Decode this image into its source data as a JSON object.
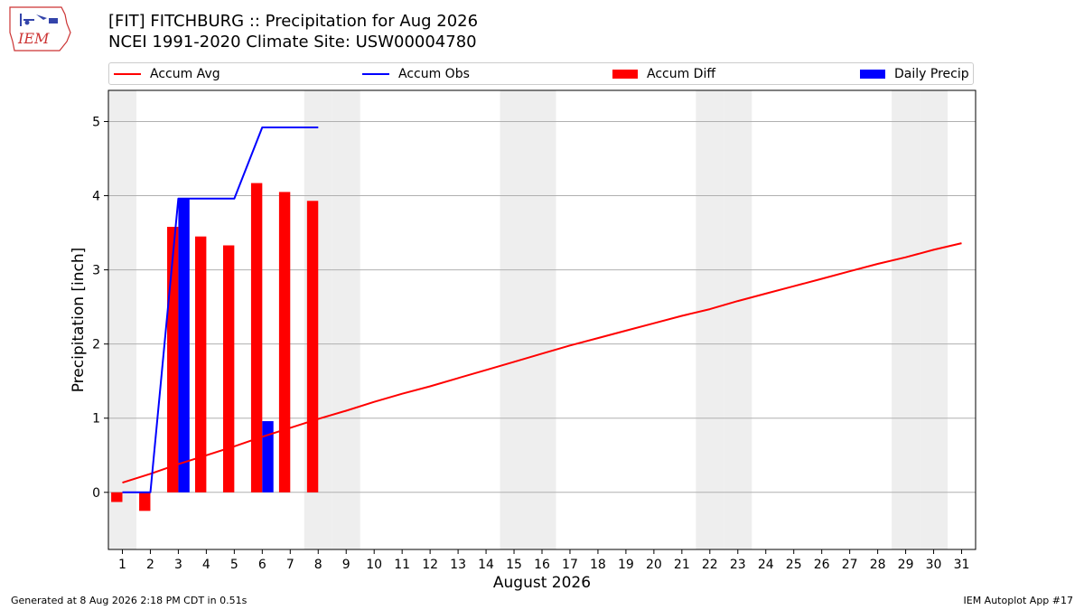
{
  "header": {
    "title_line1": "[FIT] FITCHBURG :: Precipitation for Aug 2026",
    "title_line2": "NCEI 1991-2020 Climate Site: USW00004780",
    "logo_text": "IEM"
  },
  "footer": {
    "left": "Generated at 8 Aug 2026 2:18 PM CDT in 0.51s",
    "right": "IEM Autoplot App #17"
  },
  "colors": {
    "avg": "#ff0000",
    "obs": "#0000ff",
    "diff": "#ff0000",
    "daily": "#0000ff",
    "weekend_band": "#eeeeee",
    "grid": "#b0b0b0"
  },
  "chart_data": {
    "type": "bar",
    "xlabel": "August 2026",
    "ylabel": "Precipitation [inch]",
    "xlim": [
      0.5,
      31.5
    ],
    "ylim": [
      -0.77,
      5.42
    ],
    "yticks": [
      0,
      1,
      2,
      3,
      4,
      5
    ],
    "xticks": [
      1,
      2,
      3,
      4,
      5,
      6,
      7,
      8,
      9,
      10,
      11,
      12,
      13,
      14,
      15,
      16,
      17,
      18,
      19,
      20,
      21,
      22,
      23,
      24,
      25,
      26,
      27,
      28,
      29,
      30,
      31
    ],
    "grid": "horizontal",
    "legend_position": "top",
    "shaded_weekend_days": [
      1,
      8,
      9,
      15,
      16,
      22,
      23,
      29,
      30
    ],
    "series": [
      {
        "name": "Accum Avg",
        "kind": "line",
        "days": [
          1,
          2,
          3,
          4,
          5,
          6,
          7,
          8,
          9,
          10,
          11,
          12,
          13,
          14,
          15,
          16,
          17,
          18,
          19,
          20,
          21,
          22,
          23,
          24,
          25,
          26,
          27,
          28,
          29,
          30,
          31
        ],
        "values": [
          0.13,
          0.25,
          0.38,
          0.5,
          0.62,
          0.75,
          0.87,
          0.99,
          1.1,
          1.22,
          1.33,
          1.43,
          1.54,
          1.65,
          1.76,
          1.87,
          1.98,
          2.08,
          2.18,
          2.28,
          2.38,
          2.47,
          2.58,
          2.68,
          2.78,
          2.88,
          2.98,
          3.08,
          3.17,
          3.27,
          3.36
        ]
      },
      {
        "name": "Accum Obs",
        "kind": "line",
        "days": [
          1,
          2,
          3,
          4,
          5,
          6,
          7,
          8
        ],
        "values": [
          0.0,
          0.0,
          3.96,
          3.96,
          3.96,
          4.92,
          4.92,
          4.92
        ]
      },
      {
        "name": "Accum Diff",
        "kind": "bar",
        "days": [
          1,
          2,
          3,
          4,
          5,
          6,
          7,
          8
        ],
        "values": [
          -0.13,
          -0.25,
          3.58,
          3.45,
          3.33,
          4.17,
          4.05,
          3.93
        ]
      },
      {
        "name": "Daily Precip",
        "kind": "bar",
        "days": [
          3,
          6
        ],
        "values": [
          3.96,
          0.96
        ]
      }
    ]
  }
}
